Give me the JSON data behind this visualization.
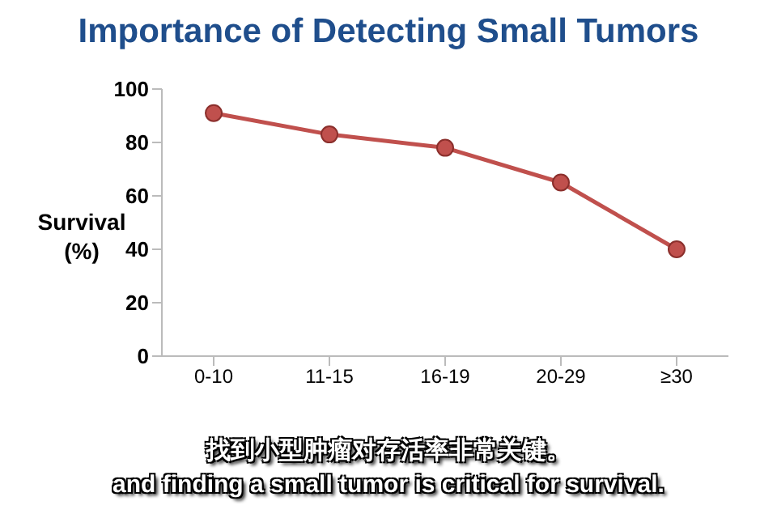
{
  "chart_data": {
    "type": "line",
    "title": "Importance of Detecting Small Tumors",
    "ylabel": "Survival\n(%)",
    "categories": [
      "0-10",
      "11-15",
      "16-19",
      "20-29",
      "≥30"
    ],
    "series": [
      {
        "color": "#c0504d",
        "values": [
          91,
          83,
          78,
          65,
          40
        ]
      }
    ],
    "ylim": [
      0,
      100
    ],
    "yticks": [
      0,
      20,
      40,
      60,
      80,
      100
    ],
    "grid": false,
    "legend": false,
    "marker": "circle",
    "line_style": "solid",
    "annotations": [
      "找到小型肿瘤对存活率非常关键。",
      "and finding a small tumor is critical for survival."
    ]
  }
}
